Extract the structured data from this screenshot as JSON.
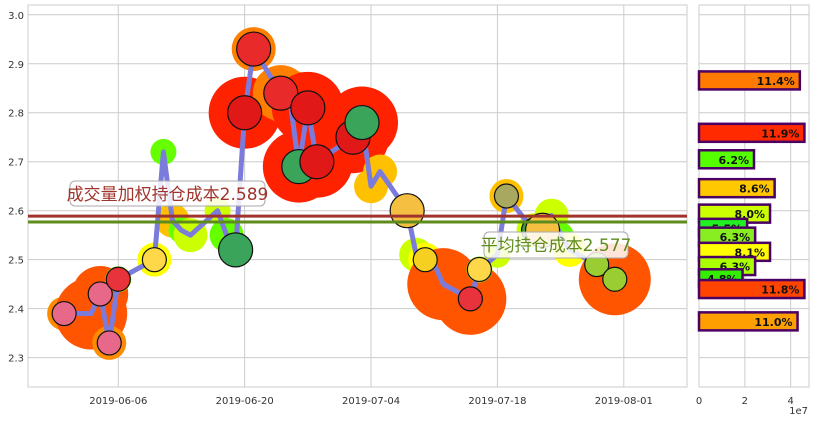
{
  "chart_data": [
    {
      "type": "line",
      "xlim": [
        "2019-05-27",
        "2019-08-08"
      ],
      "ylim": [
        2.24,
        3.02
      ],
      "grid": true,
      "x_ticks": [
        "2019-06-06",
        "2019-06-20",
        "2019-07-04",
        "2019-07-18",
        "2019-08-01"
      ],
      "y_ticks": [
        "2.3",
        "2.4",
        "2.5",
        "2.6",
        "2.7",
        "2.8",
        "2.9",
        "3.0"
      ],
      "line_color": "#7b7bdc",
      "points": [
        {
          "x": "2019-05-31",
          "y": 2.39,
          "color": "#ff8c00",
          "size": 2,
          "fruit": "radish"
        },
        {
          "x": "2019-06-03",
          "y": 2.39,
          "color": "#ff5500",
          "size": 5
        },
        {
          "x": "2019-06-04",
          "y": 2.43,
          "color": "#ff5500",
          "size": 4,
          "fruit": "radish"
        },
        {
          "x": "2019-06-05",
          "y": 2.33,
          "color": "#ff8c00",
          "size": 2,
          "fruit": "radish"
        },
        {
          "x": "2019-06-06",
          "y": 2.46,
          "color": "#99ff00",
          "size": 1,
          "fruit": "watermelon-slice"
        },
        {
          "x": "2019-06-10",
          "y": 2.5,
          "color": "#ffff00",
          "size": 2,
          "fruit": "banana"
        },
        {
          "x": "2019-06-11",
          "y": 2.72,
          "color": "#66ff00",
          "size": 1
        },
        {
          "x": "2019-06-12",
          "y": 2.58,
          "color": "#ffc000",
          "size": 2
        },
        {
          "x": "2019-06-13",
          "y": 2.56,
          "color": "#66ff00",
          "size": 1
        },
        {
          "x": "2019-06-14",
          "y": 2.55,
          "color": "#ccff00",
          "size": 2
        },
        {
          "x": "2019-06-17",
          "y": 2.6,
          "color": "#ccff00",
          "size": 1
        },
        {
          "x": "2019-06-18",
          "y": 2.55,
          "color": "#66ff00",
          "size": 2
        },
        {
          "x": "2019-06-19",
          "y": 2.52,
          "color": "#ffff00",
          "size": 2,
          "fruit": "watermelon"
        },
        {
          "x": "2019-06-20",
          "y": 2.8,
          "color": "#ff2200",
          "size": 5,
          "fruit": "apple"
        },
        {
          "x": "2019-06-21",
          "y": 2.93,
          "color": "#ff8000",
          "size": 3,
          "fruit": "strawberry"
        },
        {
          "x": "2019-06-24",
          "y": 2.84,
          "color": "#ff8000",
          "size": 4,
          "fruit": "strawberry"
        },
        {
          "x": "2019-06-25",
          "y": 2.83,
          "color": "#ff8000",
          "size": 4
        },
        {
          "x": "2019-06-26",
          "y": 2.69,
          "color": "#ff2200",
          "size": 5,
          "fruit": "watermelon"
        },
        {
          "x": "2019-06-27",
          "y": 2.81,
          "color": "#ff2200",
          "size": 5,
          "fruit": "apple"
        },
        {
          "x": "2019-06-28",
          "y": 2.7,
          "color": "#ff2200",
          "size": 5,
          "fruit": "apple"
        },
        {
          "x": "2019-07-02",
          "y": 2.75,
          "color": "#ff2200",
          "size": 5,
          "fruit": "apple"
        },
        {
          "x": "2019-07-03",
          "y": 2.78,
          "color": "#ff2200",
          "size": 5,
          "fruit": "watermelon"
        },
        {
          "x": "2019-07-04",
          "y": 2.65,
          "color": "#ffc000",
          "size": 2
        },
        {
          "x": "2019-07-05",
          "y": 2.68,
          "color": "#ffc000",
          "size": 2
        },
        {
          "x": "2019-07-08",
          "y": 2.6,
          "color": "#ccff00",
          "size": 2,
          "fruit": "pineapple"
        },
        {
          "x": "2019-07-09",
          "y": 2.51,
          "color": "#ccff00",
          "size": 2
        },
        {
          "x": "2019-07-10",
          "y": 2.5,
          "color": "#ffff00",
          "size": 2,
          "fruit": "corn"
        },
        {
          "x": "2019-07-11",
          "y": 2.49,
          "color": "#99ff00",
          "size": 1
        },
        {
          "x": "2019-07-12",
          "y": 2.45,
          "color": "#ff5500",
          "size": 5
        },
        {
          "x": "2019-07-15",
          "y": 2.42,
          "color": "#ff5500",
          "size": 5,
          "fruit": "watermelon-slice"
        },
        {
          "x": "2019-07-16",
          "y": 2.48,
          "color": "#99ff00",
          "size": 1,
          "fruit": "banana"
        },
        {
          "x": "2019-07-18",
          "y": 2.51,
          "color": "#ccff00",
          "size": 1
        },
        {
          "x": "2019-07-19",
          "y": 2.63,
          "color": "#ffc000",
          "size": 2,
          "fruit": "pear"
        },
        {
          "x": "2019-07-22",
          "y": 2.56,
          "color": "#ccff00",
          "size": 2,
          "fruit": "pea"
        },
        {
          "x": "2019-07-23",
          "y": 2.56,
          "color": "#ffc000",
          "size": 1,
          "fruit": "pineapple"
        },
        {
          "x": "2019-07-24",
          "y": 2.59,
          "color": "#ccff00",
          "size": 2
        },
        {
          "x": "2019-07-25",
          "y": 2.55,
          "color": "#66ff00",
          "size": 1
        },
        {
          "x": "2019-07-26",
          "y": 2.52,
          "color": "#ffff00",
          "size": 2
        },
        {
          "x": "2019-07-29",
          "y": 2.49,
          "color": "#99ff00",
          "size": 1,
          "fruit": "kiwi"
        },
        {
          "x": "2019-07-31",
          "y": 2.46,
          "color": "#ff5500",
          "size": 5,
          "fruit": "kiwi"
        }
      ],
      "hlines": [
        {
          "y": 2.589,
          "color": "#a0342c",
          "label": "成交量加权持仓成本2.589"
        },
        {
          "y": 2.577,
          "color": "#5e8c1c",
          "label": "平均持仓成本2.577"
        }
      ]
    },
    {
      "type": "bar",
      "orientation": "horizontal",
      "xlim": [
        0,
        4.8
      ],
      "x_ticks": [
        "0",
        "2",
        "4"
      ],
      "x_offset_label": "1e7",
      "edge_color": "#4b0063",
      "bars": [
        {
          "price": 2.866,
          "value": 4.4,
          "label": "11.4%",
          "color": "#ff7a00"
        },
        {
          "price": 2.759,
          "value": 4.6,
          "label": "11.9%",
          "color": "#ff2a00"
        },
        {
          "price": 2.705,
          "value": 2.4,
          "label": "6.2%",
          "color": "#55ff00"
        },
        {
          "price": 2.646,
          "value": 3.3,
          "label": "8.6%",
          "color": "#ffc800"
        },
        {
          "price": 2.594,
          "value": 3.1,
          "label": "8.0%",
          "color": "#ccff00"
        },
        {
          "price": 2.565,
          "value": 2.1,
          "label": "5.5%",
          "color": "#22ee22"
        },
        {
          "price": 2.547,
          "value": 2.45,
          "label": "6.3%",
          "color": "#88ee22"
        },
        {
          "price": 2.516,
          "value": 3.1,
          "label": "8.1%",
          "color": "#ffff00"
        },
        {
          "price": 2.487,
          "value": 2.45,
          "label": "6.3%",
          "color": "#aaff00"
        },
        {
          "price": 2.462,
          "value": 1.9,
          "label": "4.8%",
          "color": "#33ee00"
        },
        {
          "price": 2.44,
          "value": 4.6,
          "label": "11.8%",
          "color": "#ff4400"
        },
        {
          "price": 2.374,
          "value": 4.3,
          "label": "11.0%",
          "color": "#ffa000"
        }
      ]
    }
  ]
}
